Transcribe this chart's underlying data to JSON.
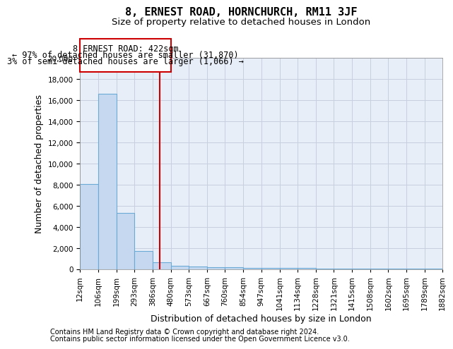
{
  "title": "8, ERNEST ROAD, HORNCHURCH, RM11 3JF",
  "subtitle": "Size of property relative to detached houses in London",
  "xlabel": "Distribution of detached houses by size in London",
  "ylabel": "Number of detached properties",
  "footer_line1": "Contains HM Land Registry data © Crown copyright and database right 2024.",
  "footer_line2": "Contains public sector information licensed under the Open Government Licence v3.0.",
  "property_label": "8 ERNEST ROAD: 422sqm",
  "annotation_line1": "← 97% of detached houses are smaller (31,870)",
  "annotation_line2": "3% of semi-detached houses are larger (1,066) →",
  "bar_left_edges": [
    12,
    106,
    199,
    293,
    386,
    480,
    573,
    667,
    760,
    854,
    947,
    1041,
    1134,
    1228,
    1321,
    1415,
    1508,
    1602,
    1695,
    1789
  ],
  "bar_widths": [
    94,
    93,
    94,
    93,
    94,
    93,
    94,
    93,
    94,
    93,
    94,
    93,
    94,
    93,
    94,
    93,
    94,
    93,
    94,
    93
  ],
  "bar_heights": [
    8100,
    16600,
    5350,
    1750,
    650,
    350,
    250,
    200,
    170,
    150,
    130,
    115,
    105,
    95,
    85,
    75,
    65,
    55,
    50,
    45
  ],
  "xtick_labels": [
    "12sqm",
    "106sqm",
    "199sqm",
    "293sqm",
    "386sqm",
    "480sqm",
    "573sqm",
    "667sqm",
    "760sqm",
    "854sqm",
    "947sqm",
    "1041sqm",
    "1134sqm",
    "1228sqm",
    "1321sqm",
    "1415sqm",
    "1508sqm",
    "1602sqm",
    "1695sqm",
    "1789sqm",
    "1882sqm"
  ],
  "xtick_positions": [
    12,
    106,
    199,
    293,
    386,
    480,
    573,
    667,
    760,
    854,
    947,
    1041,
    1134,
    1228,
    1321,
    1415,
    1508,
    1602,
    1695,
    1789,
    1882
  ],
  "ylim": [
    0,
    20000
  ],
  "xlim": [
    12,
    1882
  ],
  "bar_facecolor": "#c5d8f0",
  "bar_edgecolor": "#6aaad4",
  "vline_color": "#cc0000",
  "vline_x": 422,
  "annotation_box_color": "#cc0000",
  "grid_color": "#c8d0e0",
  "background_color": "#e8eef8",
  "title_fontsize": 11,
  "subtitle_fontsize": 9.5,
  "axis_label_fontsize": 9,
  "tick_fontsize": 7.5,
  "annotation_fontsize": 8.5,
  "footer_fontsize": 7
}
